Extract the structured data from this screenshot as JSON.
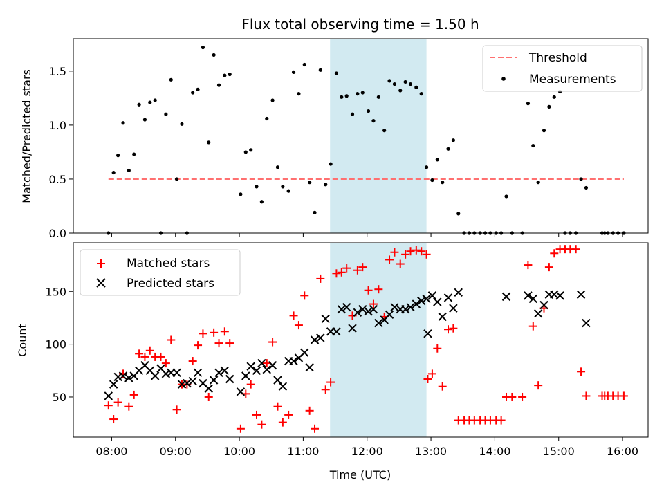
{
  "chart_data": {
    "title": "Flux total observing time = 1.50 h",
    "xlabel": "Time (UTC)",
    "x_ticks": [
      "08:00",
      "09:00",
      "10:00",
      "11:00",
      "12:00",
      "13:00",
      "14:00",
      "15:00",
      "16:00"
    ],
    "x_range_hours": [
      7.4,
      16.4
    ],
    "highlight_span_hours": [
      11.42,
      12.93
    ],
    "colors": {
      "threshold": "#ff7070",
      "measurements": "#000000",
      "matched": "#ff0000",
      "predicted": "#000000",
      "highlight": "#add8e6"
    },
    "top_panel": {
      "type": "scatter",
      "ylabel": "Matched/Predicted stars",
      "ylim": [
        0,
        1.8
      ],
      "y_ticks": [
        "0.0",
        "0.5",
        "1.0",
        "1.5"
      ],
      "legend_position": "upper-right",
      "legend": [
        "Threshold",
        "Measurements"
      ],
      "threshold": {
        "value": 0.5,
        "x_start": 7.95,
        "x_end": 16.02
      },
      "measurements": [
        [
          7.95,
          0.0
        ],
        [
          8.03,
          0.56
        ],
        [
          8.1,
          0.72
        ],
        [
          8.18,
          1.02
        ],
        [
          8.27,
          0.58
        ],
        [
          8.35,
          0.73
        ],
        [
          8.43,
          1.19
        ],
        [
          8.52,
          1.05
        ],
        [
          8.6,
          1.21
        ],
        [
          8.68,
          1.23
        ],
        [
          8.77,
          0.0
        ],
        [
          8.85,
          1.1
        ],
        [
          8.93,
          1.42
        ],
        [
          9.02,
          0.5
        ],
        [
          9.1,
          1.01
        ],
        [
          9.18,
          0.0
        ],
        [
          9.27,
          1.3
        ],
        [
          9.35,
          1.33
        ],
        [
          9.43,
          1.72
        ],
        [
          9.52,
          0.84
        ],
        [
          9.6,
          1.65
        ],
        [
          9.68,
          1.37
        ],
        [
          9.77,
          1.46
        ],
        [
          9.85,
          1.47
        ],
        [
          10.02,
          0.36
        ],
        [
          10.1,
          0.75
        ],
        [
          10.18,
          0.77
        ],
        [
          10.27,
          0.43
        ],
        [
          10.35,
          0.29
        ],
        [
          10.43,
          1.06
        ],
        [
          10.52,
          1.23
        ],
        [
          10.6,
          0.61
        ],
        [
          10.68,
          0.43
        ],
        [
          10.77,
          0.39
        ],
        [
          10.85,
          1.49
        ],
        [
          10.93,
          1.29
        ],
        [
          11.02,
          1.56
        ],
        [
          11.1,
          0.47
        ],
        [
          11.18,
          0.19
        ],
        [
          11.27,
          1.51
        ],
        [
          11.35,
          0.45
        ],
        [
          11.43,
          0.64
        ],
        [
          11.52,
          1.48
        ],
        [
          11.6,
          1.26
        ],
        [
          11.68,
          1.27
        ],
        [
          11.77,
          1.1
        ],
        [
          11.85,
          1.29
        ],
        [
          11.93,
          1.3
        ],
        [
          12.02,
          1.13
        ],
        [
          12.1,
          1.04
        ],
        [
          12.18,
          1.26
        ],
        [
          12.27,
          0.95
        ],
        [
          12.35,
          1.41
        ],
        [
          12.43,
          1.38
        ],
        [
          12.52,
          1.32
        ],
        [
          12.6,
          1.4
        ],
        [
          12.68,
          1.38
        ],
        [
          12.77,
          1.35
        ],
        [
          12.85,
          1.29
        ],
        [
          12.93,
          0.61
        ],
        [
          13.02,
          0.49
        ],
        [
          13.1,
          0.68
        ],
        [
          13.18,
          0.47
        ],
        [
          13.27,
          0.78
        ],
        [
          13.35,
          0.86
        ],
        [
          13.43,
          0.18
        ],
        [
          13.52,
          0.0
        ],
        [
          13.6,
          0.0
        ],
        [
          13.68,
          0.0
        ],
        [
          13.77,
          0.0
        ],
        [
          13.85,
          0.0
        ],
        [
          13.93,
          0.0
        ],
        [
          14.02,
          0.0
        ],
        [
          14.1,
          0.0
        ],
        [
          14.18,
          0.34
        ],
        [
          14.27,
          0.0
        ],
        [
          14.43,
          0.0
        ],
        [
          14.52,
          1.2
        ],
        [
          14.6,
          0.81
        ],
        [
          14.68,
          0.47
        ],
        [
          14.77,
          0.95
        ],
        [
          14.85,
          1.17
        ],
        [
          14.93,
          1.26
        ],
        [
          15.02,
          1.31
        ],
        [
          15.1,
          0.0
        ],
        [
          15.18,
          0.0
        ],
        [
          15.27,
          0.0
        ],
        [
          15.35,
          0.5
        ],
        [
          15.43,
          0.42
        ],
        [
          15.68,
          0.0
        ],
        [
          15.72,
          0.0
        ],
        [
          15.77,
          0.0
        ],
        [
          15.85,
          0.0
        ],
        [
          15.93,
          0.0
        ],
        [
          16.02,
          0.0
        ]
      ]
    },
    "bottom_panel": {
      "type": "scatter",
      "ylabel": "Count",
      "ylim": [
        12,
        196
      ],
      "y_ticks": [
        "50",
        "100",
        "150"
      ],
      "legend_position": "upper-left",
      "series": [
        {
          "name": "Matched stars",
          "marker": "plus",
          "points": [
            [
              7.95,
              42
            ],
            [
              8.03,
              29
            ],
            [
              8.1,
              45
            ],
            [
              8.18,
              72
            ],
            [
              8.27,
              41
            ],
            [
              8.35,
              52
            ],
            [
              8.43,
              91
            ],
            [
              8.52,
              88
            ],
            [
              8.6,
              94
            ],
            [
              8.68,
              88
            ],
            [
              8.77,
              88
            ],
            [
              8.85,
              82
            ],
            [
              8.93,
              104
            ],
            [
              9.02,
              38
            ],
            [
              9.1,
              62
            ],
            [
              9.18,
              62
            ],
            [
              9.27,
              84
            ],
            [
              9.35,
              99
            ],
            [
              9.43,
              110
            ],
            [
              9.52,
              50
            ],
            [
              9.6,
              111
            ],
            [
              9.68,
              101
            ],
            [
              9.77,
              112
            ],
            [
              9.85,
              101
            ],
            [
              10.02,
              20
            ],
            [
              10.1,
              53
            ],
            [
              10.18,
              62
            ],
            [
              10.27,
              33
            ],
            [
              10.35,
              24
            ],
            [
              10.43,
              82
            ],
            [
              10.52,
              102
            ],
            [
              10.6,
              41
            ],
            [
              10.68,
              26
            ],
            [
              10.77,
              33
            ],
            [
              10.85,
              127
            ],
            [
              10.93,
              118
            ],
            [
              11.02,
              146
            ],
            [
              11.1,
              37
            ],
            [
              11.18,
              20
            ],
            [
              11.27,
              162
            ],
            [
              11.35,
              57
            ],
            [
              11.43,
              64
            ],
            [
              11.52,
              167
            ],
            [
              11.6,
              168
            ],
            [
              11.68,
              172
            ],
            [
              11.77,
              127
            ],
            [
              11.85,
              170
            ],
            [
              11.93,
              173
            ],
            [
              12.02,
              151
            ],
            [
              12.1,
              138
            ],
            [
              12.18,
              152
            ],
            [
              12.27,
              126
            ],
            [
              12.35,
              180
            ],
            [
              12.43,
              187
            ],
            [
              12.52,
              176
            ],
            [
              12.6,
              185
            ],
            [
              12.68,
              188
            ],
            [
              12.77,
              189
            ],
            [
              12.85,
              188
            ],
            [
              12.93,
              185
            ],
            [
              12.95,
              67
            ],
            [
              13.02,
              72
            ],
            [
              13.1,
              96
            ],
            [
              13.18,
              60
            ],
            [
              13.27,
              114
            ],
            [
              13.35,
              115
            ],
            [
              13.43,
              28
            ],
            [
              13.52,
              28
            ],
            [
              13.6,
              28
            ],
            [
              13.68,
              28
            ],
            [
              13.77,
              28
            ],
            [
              13.85,
              28
            ],
            [
              13.93,
              28
            ],
            [
              14.02,
              28
            ],
            [
              14.1,
              28
            ],
            [
              14.18,
              50
            ],
            [
              14.27,
              50
            ],
            [
              14.43,
              50
            ],
            [
              14.52,
              175
            ],
            [
              14.6,
              117
            ],
            [
              14.68,
              61
            ],
            [
              14.77,
              134
            ],
            [
              14.85,
              173
            ],
            [
              14.93,
              186
            ],
            [
              15.02,
              190
            ],
            [
              15.1,
              190
            ],
            [
              15.18,
              190
            ],
            [
              15.27,
              190
            ],
            [
              15.35,
              74
            ],
            [
              15.43,
              51
            ],
            [
              15.68,
              51
            ],
            [
              15.72,
              51
            ],
            [
              15.77,
              51
            ],
            [
              15.85,
              51
            ],
            [
              15.93,
              51
            ],
            [
              16.02,
              51
            ]
          ]
        },
        {
          "name": "Predicted stars",
          "marker": "cross",
          "points": [
            [
              7.95,
              51
            ],
            [
              8.03,
              62
            ],
            [
              8.1,
              69
            ],
            [
              8.18,
              70
            ],
            [
              8.27,
              68
            ],
            [
              8.35,
              70
            ],
            [
              8.43,
              75
            ],
            [
              8.52,
              80
            ],
            [
              8.6,
              75
            ],
            [
              8.68,
              70
            ],
            [
              8.77,
              77
            ],
            [
              8.85,
              72
            ],
            [
              8.93,
              73
            ],
            [
              9.02,
              73
            ],
            [
              9.1,
              62
            ],
            [
              9.18,
              63
            ],
            [
              9.27,
              65
            ],
            [
              9.35,
              73
            ],
            [
              9.43,
              63
            ],
            [
              9.52,
              58
            ],
            [
              9.6,
              66
            ],
            [
              9.68,
              73
            ],
            [
              9.77,
              75
            ],
            [
              9.85,
              67
            ],
            [
              10.02,
              55
            ],
            [
              10.1,
              70
            ],
            [
              10.18,
              79
            ],
            [
              10.27,
              75
            ],
            [
              10.35,
              82
            ],
            [
              10.43,
              76
            ],
            [
              10.52,
              80
            ],
            [
              10.6,
              66
            ],
            [
              10.68,
              60
            ],
            [
              10.77,
              84
            ],
            [
              10.85,
              84
            ],
            [
              10.93,
              87
            ],
            [
              11.02,
              92
            ],
            [
              11.1,
              78
            ],
            [
              11.18,
              104
            ],
            [
              11.27,
              106
            ],
            [
              11.35,
              124
            ],
            [
              11.43,
              112
            ],
            [
              11.52,
              112
            ],
            [
              11.6,
              133
            ],
            [
              11.68,
              135
            ],
            [
              11.77,
              115
            ],
            [
              11.85,
              130
            ],
            [
              11.93,
              133
            ],
            [
              12.02,
              131
            ],
            [
              12.1,
              133
            ],
            [
              12.18,
              120
            ],
            [
              12.27,
              123
            ],
            [
              12.35,
              128
            ],
            [
              12.43,
              135
            ],
            [
              12.52,
              133
            ],
            [
              12.6,
              133
            ],
            [
              12.68,
              135
            ],
            [
              12.77,
              138
            ],
            [
              12.85,
              141
            ],
            [
              12.93,
              143
            ],
            [
              12.95,
              110
            ],
            [
              13.02,
              146
            ],
            [
              13.1,
              140
            ],
            [
              13.18,
              126
            ],
            [
              13.27,
              144
            ],
            [
              13.35,
              134
            ],
            [
              13.43,
              149
            ],
            [
              14.18,
              145
            ],
            [
              14.52,
              146
            ],
            [
              14.6,
              143
            ],
            [
              14.68,
              129
            ],
            [
              14.77,
              137
            ],
            [
              14.85,
              147
            ],
            [
              14.93,
              147
            ],
            [
              15.02,
              146
            ],
            [
              15.35,
              147
            ],
            [
              15.43,
              120
            ]
          ]
        }
      ]
    }
  }
}
